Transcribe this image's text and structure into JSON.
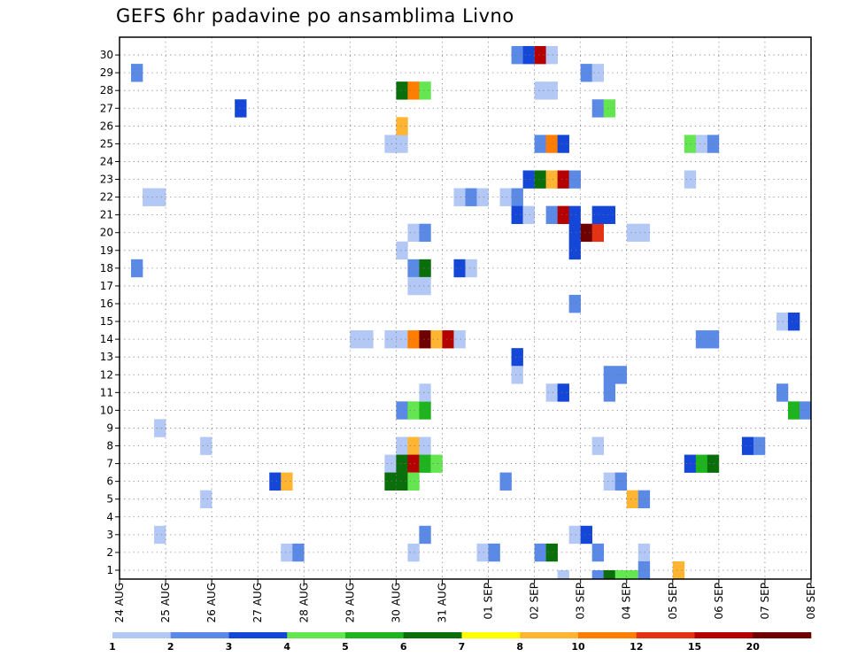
{
  "chart_data": {
    "type": "heatmap",
    "title": "GEFS 6hr padavine po ansamblima Livno",
    "xlabel": "",
    "ylabel": "",
    "x_ticks": [
      "24 AUG",
      "25 AUG",
      "26 AUG",
      "27 AUG",
      "28 AUG",
      "29 AUG",
      "30 AUG",
      "31 AUG",
      "01 SEP",
      "02 SEP",
      "03 SEP",
      "04 SEP",
      "05 SEP",
      "06 SEP",
      "07 SEP",
      "08 SEP"
    ],
    "y_ticks": [
      1,
      2,
      3,
      4,
      5,
      6,
      7,
      8,
      9,
      10,
      11,
      12,
      13,
      14,
      15,
      16,
      17,
      18,
      19,
      20,
      21,
      22,
      23,
      24,
      25,
      26,
      27,
      28,
      29,
      30
    ],
    "x_unit": "6-hour step from 24 AUG 00z",
    "ylim": [
      0,
      30
    ],
    "grid": true,
    "legend": {
      "position": "bottom",
      "labels": [
        "1",
        "2",
        "3",
        "4",
        "5",
        "6",
        "7",
        "8",
        "10",
        "12",
        "15",
        "20"
      ],
      "colors": [
        "#b4c8f5",
        "#5a8ae6",
        "#1446d8",
        "#64e650",
        "#1eb41e",
        "#0a6e0a",
        "#ffff00",
        "#ffb432",
        "#ff7d00",
        "#e63214",
        "#b40000",
        "#6e0000"
      ]
    },
    "levels": [
      "1",
      "2",
      "3",
      "4",
      "5",
      "6",
      "7",
      "8",
      "10",
      "12",
      "15",
      "20"
    ],
    "cells": [
      [
        1,
        29,
        "2"
      ],
      [
        1,
        18,
        "2"
      ],
      [
        2,
        22,
        "1"
      ],
      [
        3,
        22,
        "1"
      ],
      [
        3,
        9,
        "1"
      ],
      [
        3,
        3,
        "1"
      ],
      [
        7,
        8,
        "1"
      ],
      [
        7,
        5,
        "1"
      ],
      [
        10,
        27,
        "3"
      ],
      [
        14,
        2,
        "1"
      ],
      [
        15,
        2,
        "2"
      ],
      [
        13,
        6,
        "3"
      ],
      [
        14,
        6,
        "8"
      ],
      [
        20,
        14,
        "1"
      ],
      [
        21,
        14,
        "1"
      ],
      [
        23,
        25,
        "1"
      ],
      [
        24,
        25,
        "1"
      ],
      [
        23,
        14,
        "1"
      ],
      [
        24,
        14,
        "1"
      ],
      [
        23,
        7,
        "1"
      ],
      [
        23,
        6,
        "6"
      ],
      [
        24,
        6,
        "6"
      ],
      [
        24,
        28,
        "6"
      ],
      [
        25,
        28,
        "10"
      ],
      [
        26,
        28,
        "4"
      ],
      [
        24,
        26,
        "8"
      ],
      [
        24,
        19,
        "1"
      ],
      [
        24,
        10,
        "2"
      ],
      [
        25,
        10,
        "4"
      ],
      [
        26,
        10,
        "5"
      ],
      [
        24,
        8,
        "1"
      ],
      [
        25,
        8,
        "8"
      ],
      [
        26,
        8,
        "1"
      ],
      [
        24,
        7,
        "6"
      ],
      [
        25,
        7,
        "15"
      ],
      [
        26,
        7,
        "5"
      ],
      [
        27,
        7,
        "4"
      ],
      [
        25,
        6,
        "4"
      ],
      [
        25,
        20,
        "1"
      ],
      [
        26,
        20,
        "2"
      ],
      [
        25,
        18,
        "2"
      ],
      [
        26,
        18,
        "6"
      ],
      [
        25,
        17,
        "1"
      ],
      [
        26,
        17,
        "1"
      ],
      [
        25,
        14,
        "10"
      ],
      [
        26,
        14,
        "20"
      ],
      [
        27,
        14,
        "8"
      ],
      [
        28,
        14,
        "15"
      ],
      [
        29,
        14,
        "1"
      ],
      [
        25,
        2,
        "1"
      ],
      [
        26,
        11,
        "1"
      ],
      [
        26,
        3,
        "2"
      ],
      [
        29,
        18,
        "3"
      ],
      [
        30,
        18,
        "1"
      ],
      [
        29,
        22,
        "1"
      ],
      [
        30,
        22,
        "2"
      ],
      [
        31,
        22,
        "1"
      ],
      [
        31,
        2,
        "1"
      ],
      [
        32,
        2,
        "2"
      ],
      [
        33,
        22,
        "1"
      ],
      [
        34,
        22,
        "2"
      ],
      [
        34,
        21,
        "3"
      ],
      [
        35,
        21,
        "1"
      ],
      [
        33,
        6,
        "2"
      ],
      [
        34,
        13,
        "3"
      ],
      [
        34,
        12,
        "1"
      ],
      [
        34,
        30,
        "2"
      ],
      [
        35,
        30,
        "3"
      ],
      [
        36,
        30,
        "15"
      ],
      [
        37,
        30,
        "1"
      ],
      [
        35,
        23,
        "3"
      ],
      [
        36,
        23,
        "6"
      ],
      [
        37,
        23,
        "8"
      ],
      [
        38,
        23,
        "15"
      ],
      [
        39,
        23,
        "2"
      ],
      [
        36,
        28,
        "1"
      ],
      [
        37,
        28,
        "1"
      ],
      [
        36,
        25,
        "2"
      ],
      [
        37,
        25,
        "10"
      ],
      [
        38,
        25,
        "3"
      ],
      [
        36,
        2,
        "2"
      ],
      [
        37,
        2,
        "6"
      ],
      [
        37,
        21,
        "2"
      ],
      [
        38,
        21,
        "15"
      ],
      [
        39,
        21,
        "3"
      ],
      [
        37,
        11,
        "1"
      ],
      [
        38,
        11,
        "3"
      ],
      [
        38,
        0,
        "1"
      ],
      [
        39,
        20,
        "3"
      ],
      [
        40,
        20,
        "20"
      ],
      [
        41,
        20,
        "12"
      ],
      [
        39,
        19,
        "3"
      ],
      [
        39,
        16,
        "2"
      ],
      [
        39,
        3,
        "1"
      ],
      [
        40,
        3,
        "3"
      ],
      [
        40,
        29,
        "2"
      ],
      [
        41,
        29,
        "1"
      ],
      [
        41,
        27,
        "2"
      ],
      [
        42,
        27,
        "4"
      ],
      [
        41,
        21,
        "3"
      ],
      [
        42,
        21,
        "3"
      ],
      [
        41,
        8,
        "1"
      ],
      [
        41,
        2,
        "2"
      ],
      [
        41,
        0,
        "2"
      ],
      [
        42,
        0,
        "6"
      ],
      [
        43,
        0,
        "4"
      ],
      [
        44,
        0,
        "4"
      ],
      [
        45,
        0,
        "1"
      ],
      [
        42,
        12,
        "2"
      ],
      [
        43,
        12,
        "2"
      ],
      [
        42,
        11,
        "2"
      ],
      [
        42,
        6,
        "1"
      ],
      [
        43,
        6,
        "2"
      ],
      [
        44,
        20,
        "1"
      ],
      [
        45,
        20,
        "1"
      ],
      [
        44,
        5,
        "8"
      ],
      [
        45,
        5,
        "2"
      ],
      [
        45,
        2,
        "1"
      ],
      [
        45,
        1,
        "2"
      ],
      [
        48,
        1,
        "8"
      ],
      [
        49,
        25,
        "4"
      ],
      [
        50,
        25,
        "1"
      ],
      [
        51,
        25,
        "2"
      ],
      [
        49,
        23,
        "1"
      ],
      [
        49,
        7,
        "3"
      ],
      [
        50,
        7,
        "5"
      ],
      [
        51,
        7,
        "6"
      ],
      [
        50,
        14,
        "2"
      ],
      [
        51,
        14,
        "2"
      ],
      [
        54,
        8,
        "3"
      ],
      [
        55,
        8,
        "2"
      ],
      [
        57,
        15,
        "1"
      ],
      [
        58,
        15,
        "3"
      ],
      [
        57,
        11,
        "2"
      ],
      [
        58,
        10,
        "5"
      ],
      [
        59,
        10,
        "2"
      ]
    ]
  }
}
